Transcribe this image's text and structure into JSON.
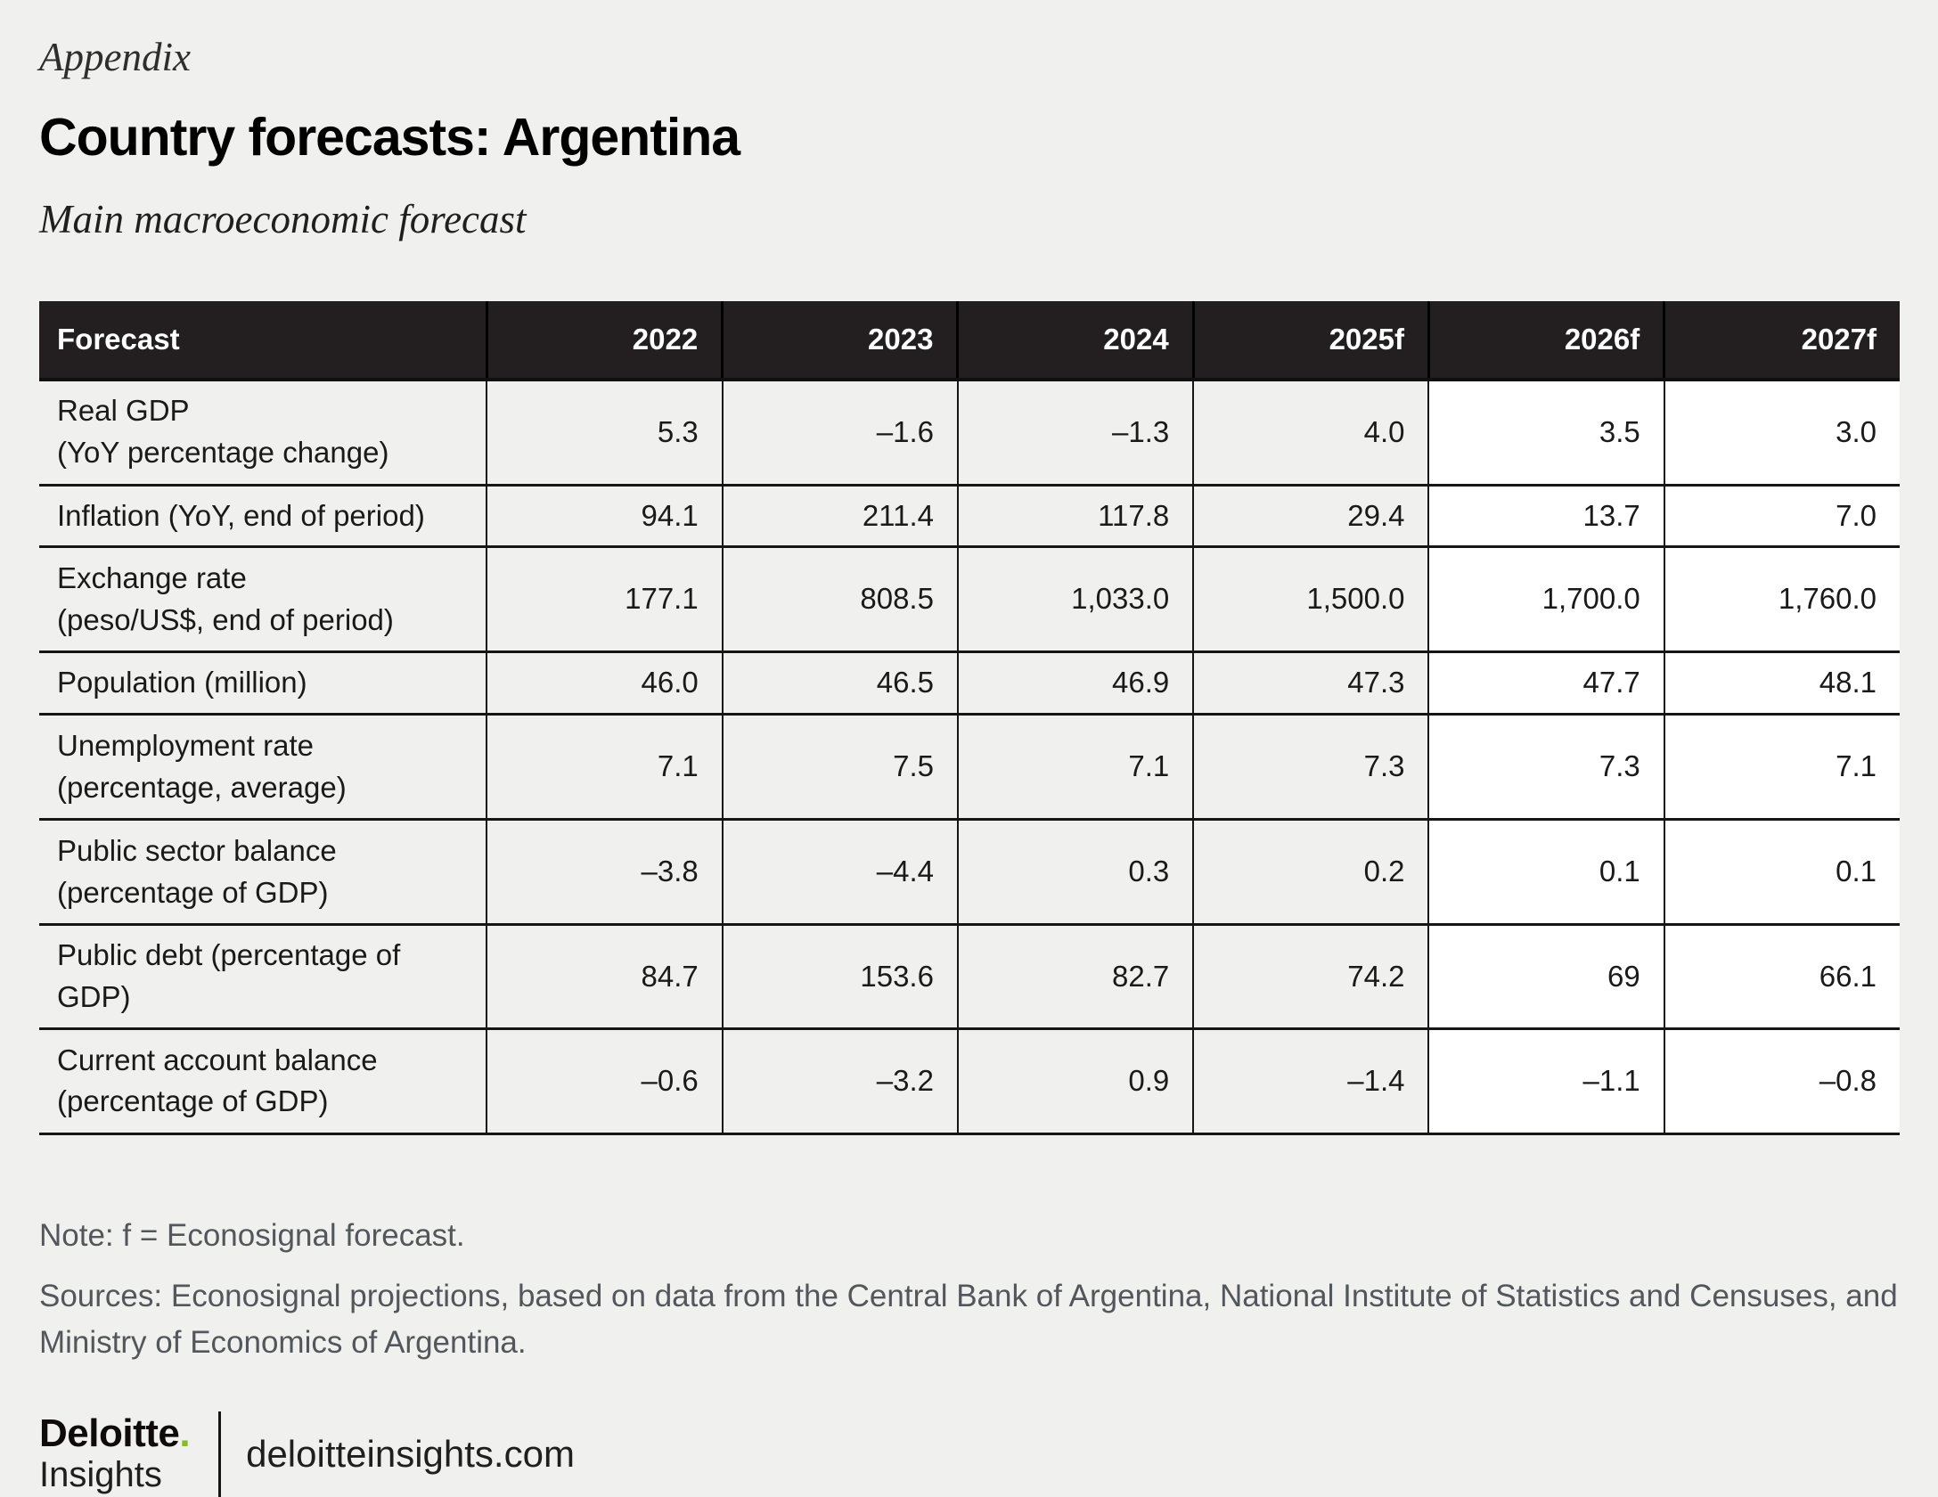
{
  "page": {
    "eyebrow": "Appendix",
    "title": "Country forecasts: Argentina",
    "subtitle": "Main macroeconomic forecast"
  },
  "chart_data": {
    "type": "table",
    "columns": [
      "Forecast",
      "2022",
      "2023",
      "2024",
      "2025f",
      "2026f",
      "2027f"
    ],
    "forecast_highlight_columns": [
      "2026f",
      "2027f"
    ],
    "rows": [
      {
        "label": "Real GDP\n(YoY percentage change)",
        "values": [
          "5.3",
          "–1.6",
          "–1.3",
          "4.0",
          "3.5",
          "3.0"
        ]
      },
      {
        "label": "Inflation (YoY, end of period)",
        "values": [
          "94.1",
          "211.4",
          "117.8",
          "29.4",
          "13.7",
          "7.0"
        ]
      },
      {
        "label": "Exchange rate\n(peso/US$, end of period)",
        "values": [
          "177.1",
          "808.5",
          "1,033.0",
          "1,500.0",
          "1,700.0",
          "1,760.0"
        ]
      },
      {
        "label": "Population (million)",
        "values": [
          "46.0",
          "46.5",
          "46.9",
          "47.3",
          "47.7",
          "48.1"
        ]
      },
      {
        "label": "Unemployment rate\n(percentage, average)",
        "values": [
          "7.1",
          "7.5",
          "7.1",
          "7.3",
          "7.3",
          "7.1"
        ]
      },
      {
        "label": "Public sector balance\n(percentage of GDP)",
        "values": [
          "–3.8",
          "–4.4",
          "0.3",
          "0.2",
          "0.1",
          "0.1"
        ]
      },
      {
        "label": "Public debt (percentage of GDP)",
        "values": [
          "84.7",
          "153.6",
          "82.7",
          "74.2",
          "69",
          "66.1"
        ]
      },
      {
        "label": "Current account balance\n(percentage of GDP)",
        "values": [
          "–0.6",
          "–3.2",
          "0.9",
          "–1.4",
          "–1.1",
          "–0.8"
        ]
      }
    ]
  },
  "notes": {
    "note": "Note: f = Econosignal forecast.",
    "sources": "Sources: Econosignal projections, based on data from the Central Bank of Argentina, National Institute of Statistics and Censuses, and Ministry of Economics of Argentina."
  },
  "footer": {
    "brand_name": "Deloitte",
    "brand_dot": ".",
    "brand_sub": "Insights",
    "site": "deloitteinsights.com"
  },
  "colors": {
    "page_bg": "#f0f1ef",
    "header_bg": "#231f20",
    "header_text": "#ffffff",
    "cell_shaded_bg": "#f0f1ef",
    "cell_forecast_bg": "#ffffff",
    "border": "#161616",
    "body_text": "#1a1a1a",
    "muted_text": "#53565a",
    "brand_green": "#86bc25"
  }
}
